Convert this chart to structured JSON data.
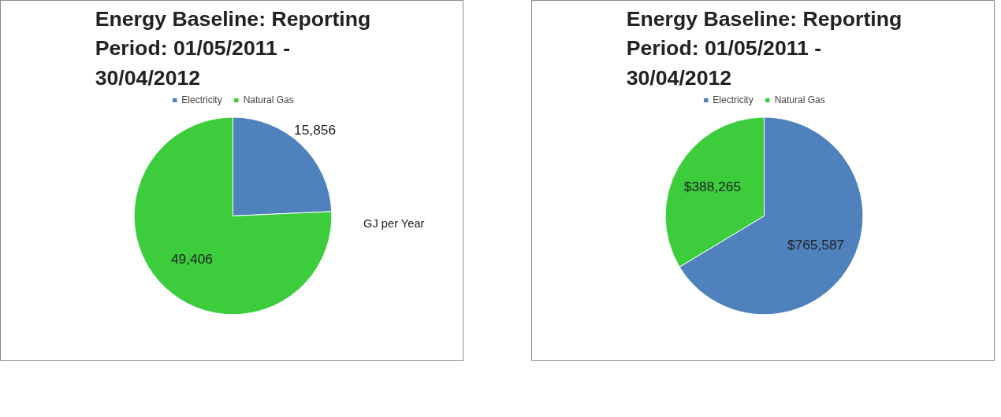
{
  "chart_data": [
    {
      "type": "pie",
      "title": "Energy Baseline: Reporting Period: 01/05/2011 - 30/04/2012",
      "categories": [
        "Electricity",
        "Natural Gas"
      ],
      "values": [
        15856,
        49406
      ],
      "colors": [
        "#4f81bd",
        "#3ccc3c"
      ],
      "value_labels": [
        "15,856",
        "49,406"
      ],
      "annotations": [
        "GJ per Year"
      ],
      "legend": "top"
    },
    {
      "type": "pie",
      "title": "Energy Baseline: Reporting Period: 01/05/2011 - 30/04/2012",
      "categories": [
        "Electricity",
        "Natural Gas"
      ],
      "values": [
        765587,
        388265
      ],
      "colors": [
        "#4f81bd",
        "#3ccc3c"
      ],
      "value_labels": [
        "$765,587",
        "$388,265"
      ],
      "legend": "top"
    }
  ]
}
